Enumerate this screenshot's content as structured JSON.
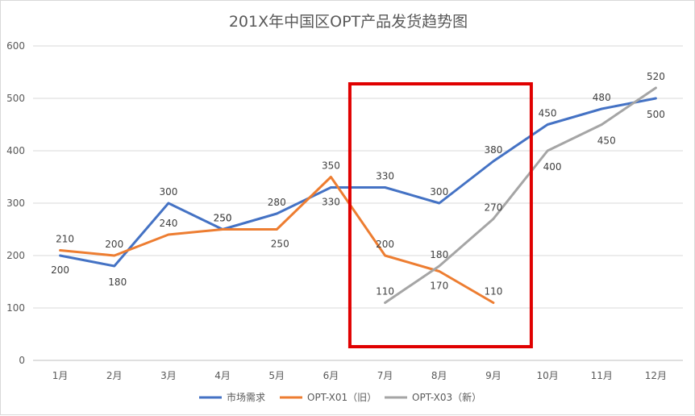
{
  "chart_data": {
    "type": "line",
    "title": "201X年中国区OPT产品发货趋势图",
    "xlabel": "",
    "ylabel": "",
    "categories": [
      "1月",
      "2月",
      "3月",
      "4月",
      "5月",
      "6月",
      "7月",
      "8月",
      "9月",
      "10月",
      "11月",
      "12月"
    ],
    "ylim": [
      0,
      600
    ],
    "yticks": [
      0,
      100,
      200,
      300,
      400,
      500,
      600
    ],
    "grid": true,
    "legend": "bottom",
    "series": [
      {
        "name": "市场需求",
        "color": "#4472C4",
        "values": [
          200,
          180,
          300,
          250,
          280,
          330,
          330,
          300,
          380,
          450,
          480,
          500
        ]
      },
      {
        "name": "OPT-X01（旧）",
        "color": "#ED7D31",
        "values": [
          210,
          200,
          240,
          250,
          250,
          350,
          200,
          170,
          110,
          null,
          null,
          null
        ]
      },
      {
        "name": "OPT-X03（新）",
        "color": "#A5A5A5",
        "values": [
          null,
          null,
          null,
          null,
          null,
          null,
          110,
          180,
          270,
          400,
          450,
          520
        ]
      }
    ],
    "highlight": {
      "from": "7月",
      "to": "9月",
      "color": "#E00000"
    }
  }
}
